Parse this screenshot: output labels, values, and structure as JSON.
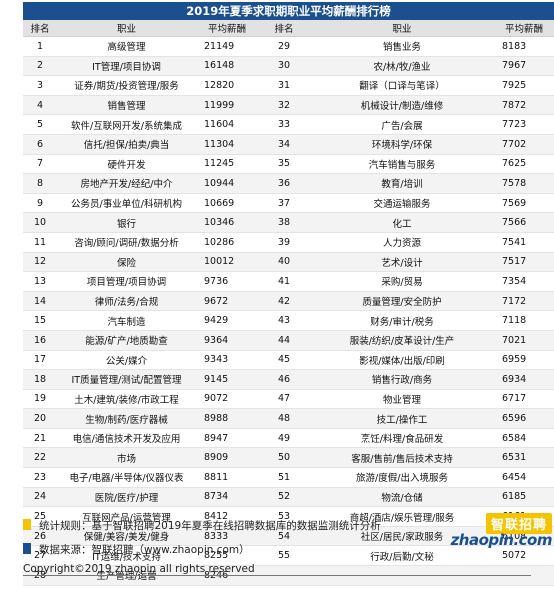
{
  "title": "2019年夏季求职期职业平均薪酬排行榜",
  "headers": {
    "rank": "排名",
    "job": "职业",
    "salary": "平均薪酬"
  },
  "colors": {
    "header_blue": "#1b4f8d",
    "header_gray": "#e2e2e2",
    "accent_yellow": "#f5c400"
  },
  "rows": [
    {
      "left": {
        "rank": "1",
        "job": "高级管理",
        "salary": "21149"
      },
      "right": {
        "rank": "29",
        "job": "销售业务",
        "salary": "8183"
      }
    },
    {
      "left": {
        "rank": "2",
        "job": "IT管理/项目协调",
        "salary": "16148"
      },
      "right": {
        "rank": "30",
        "job": "农/林/牧/渔业",
        "salary": "7967"
      }
    },
    {
      "left": {
        "rank": "3",
        "job": "证券/期货/投资管理/服务",
        "salary": "12820"
      },
      "right": {
        "rank": "31",
        "job": "翻译（口译与笔译）",
        "salary": "7925"
      }
    },
    {
      "left": {
        "rank": "4",
        "job": "销售管理",
        "salary": "11999"
      },
      "right": {
        "rank": "32",
        "job": "机械设计/制造/维修",
        "salary": "7872"
      }
    },
    {
      "left": {
        "rank": "5",
        "job": "软件/互联网开发/系统集成",
        "salary": "11604"
      },
      "right": {
        "rank": "33",
        "job": "广告/会展",
        "salary": "7723"
      }
    },
    {
      "left": {
        "rank": "6",
        "job": "信托/担保/拍卖/典当",
        "salary": "11304"
      },
      "right": {
        "rank": "34",
        "job": "环境科学/环保",
        "salary": "7702"
      }
    },
    {
      "left": {
        "rank": "7",
        "job": "硬件开发",
        "salary": "11245"
      },
      "right": {
        "rank": "35",
        "job": "汽车销售与服务",
        "salary": "7625"
      }
    },
    {
      "left": {
        "rank": "8",
        "job": "房地产开发/经纪/中介",
        "salary": "10944"
      },
      "right": {
        "rank": "36",
        "job": "教育/培训",
        "salary": "7578"
      }
    },
    {
      "left": {
        "rank": "9",
        "job": "公务员/事业单位/科研机构",
        "salary": "10669"
      },
      "right": {
        "rank": "37",
        "job": "交通运输服务",
        "salary": "7569"
      }
    },
    {
      "left": {
        "rank": "10",
        "job": "银行",
        "salary": "10346"
      },
      "right": {
        "rank": "38",
        "job": "化工",
        "salary": "7566"
      }
    },
    {
      "left": {
        "rank": "11",
        "job": "咨询/顾问/调研/数据分析",
        "salary": "10286"
      },
      "right": {
        "rank": "39",
        "job": "人力资源",
        "salary": "7541"
      }
    },
    {
      "left": {
        "rank": "12",
        "job": "保险",
        "salary": "10012"
      },
      "right": {
        "rank": "40",
        "job": "艺术/设计",
        "salary": "7517"
      }
    },
    {
      "left": {
        "rank": "13",
        "job": "项目管理/项目协调",
        "salary": "9736"
      },
      "right": {
        "rank": "41",
        "job": "采购/贸易",
        "salary": "7354"
      }
    },
    {
      "left": {
        "rank": "14",
        "job": "律师/法务/合规",
        "salary": "9672"
      },
      "right": {
        "rank": "42",
        "job": "质量管理/安全防护",
        "salary": "7172"
      }
    },
    {
      "left": {
        "rank": "15",
        "job": "汽车制造",
        "salary": "9429"
      },
      "right": {
        "rank": "43",
        "job": "财务/审计/税务",
        "salary": "7118"
      }
    },
    {
      "left": {
        "rank": "16",
        "job": "能源/矿产/地质勘查",
        "salary": "9364"
      },
      "right": {
        "rank": "44",
        "job": "服装/纺织/皮革设计/生产",
        "salary": "7021"
      }
    },
    {
      "left": {
        "rank": "17",
        "job": "公关/媒介",
        "salary": "9343"
      },
      "right": {
        "rank": "45",
        "job": "影视/媒体/出版/印刷",
        "salary": "6959"
      }
    },
    {
      "left": {
        "rank": "18",
        "job": "IT质量管理/测试/配置管理",
        "salary": "9145"
      },
      "right": {
        "rank": "46",
        "job": "销售行政/商务",
        "salary": "6934"
      }
    },
    {
      "left": {
        "rank": "19",
        "job": "土木/建筑/装修/市政工程",
        "salary": "9072"
      },
      "right": {
        "rank": "47",
        "job": "物业管理",
        "salary": "6717"
      }
    },
    {
      "left": {
        "rank": "20",
        "job": "生物/制药/医疗器械",
        "salary": "8988"
      },
      "right": {
        "rank": "48",
        "job": "技工/操作工",
        "salary": "6596"
      }
    },
    {
      "left": {
        "rank": "21",
        "job": "电信/通信技术开发及应用",
        "salary": "8947"
      },
      "right": {
        "rank": "49",
        "job": "烹饪/料理/食品研发",
        "salary": "6584"
      }
    },
    {
      "left": {
        "rank": "22",
        "job": "市场",
        "salary": "8909"
      },
      "right": {
        "rank": "50",
        "job": "客服/售前/售后技术支持",
        "salary": "6531"
      }
    },
    {
      "left": {
        "rank": "23",
        "job": "电子/电器/半导体/仪器仪表",
        "salary": "8811"
      },
      "right": {
        "rank": "51",
        "job": "旅游/度假/出入境服务",
        "salary": "6454"
      }
    },
    {
      "left": {
        "rank": "24",
        "job": "医院/医疗/护理",
        "salary": "8734"
      },
      "right": {
        "rank": "52",
        "job": "物流/仓储",
        "salary": "6185"
      }
    },
    {
      "left": {
        "rank": "25",
        "job": "互联网产品/运营管理",
        "salary": "8412"
      },
      "right": {
        "rank": "53",
        "job": "商超/酒店/娱乐管理/服务",
        "salary": "6161"
      }
    },
    {
      "left": {
        "rank": "26",
        "job": "保健/美容/美发/健身",
        "salary": "8333"
      },
      "right": {
        "rank": "54",
        "job": "社区/居民/家政服务",
        "salary": "6108"
      }
    },
    {
      "left": {
        "rank": "27",
        "job": "IT运维/技术支持",
        "salary": "8255"
      },
      "right": {
        "rank": "55",
        "job": "行政/后勤/文秘",
        "salary": "5072"
      }
    },
    {
      "left": {
        "rank": "28",
        "job": "生产管理/运营",
        "salary": "8246"
      },
      "right": {
        "rank": "",
        "job": "",
        "salary": ""
      }
    }
  ],
  "notes": {
    "rule": "统计规则：基于智联招聘2019年夏季在线招聘数据库的数据监测统计分析",
    "source": "数据来源：智联招聘（www.zhaopin.com）"
  },
  "logo": {
    "cn": "智联招聘",
    "en": "zhaopin.com"
  },
  "copyright": "Copyright©2019 zhaopin all rights reserved"
}
